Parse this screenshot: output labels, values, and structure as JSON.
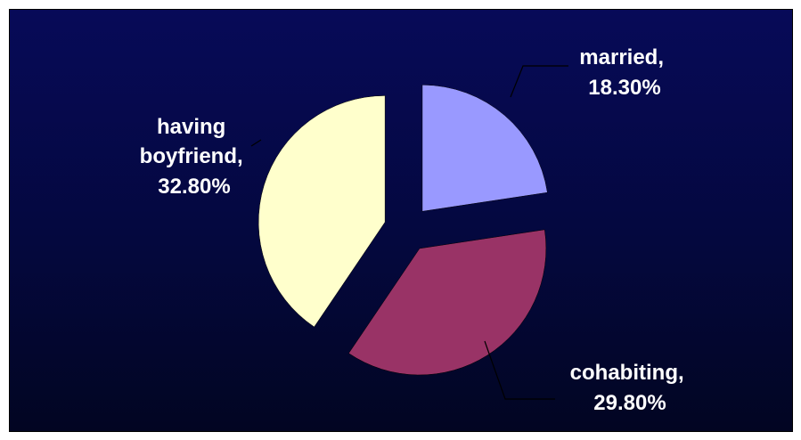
{
  "chart_data": {
    "type": "pie",
    "title": "",
    "exploded": true,
    "slices": [
      {
        "name": "married",
        "value": 18.3,
        "value_label": "18.30%",
        "color": "#9999ff"
      },
      {
        "name": "cohabiting",
        "value": 29.8,
        "value_label": "29.80%",
        "color": "#993366"
      },
      {
        "name": "having boyfriend",
        "value": 32.8,
        "value_label": "32.80%",
        "color": "#ffffcc"
      }
    ],
    "labels": {
      "married": [
        "married,",
        "18.30%"
      ],
      "cohabiting": [
        "cohabiting,",
        "29.80%"
      ],
      "having_boyfriend": [
        "having",
        "boyfriend,",
        "32.80%"
      ]
    },
    "background_color": "#05084a"
  }
}
